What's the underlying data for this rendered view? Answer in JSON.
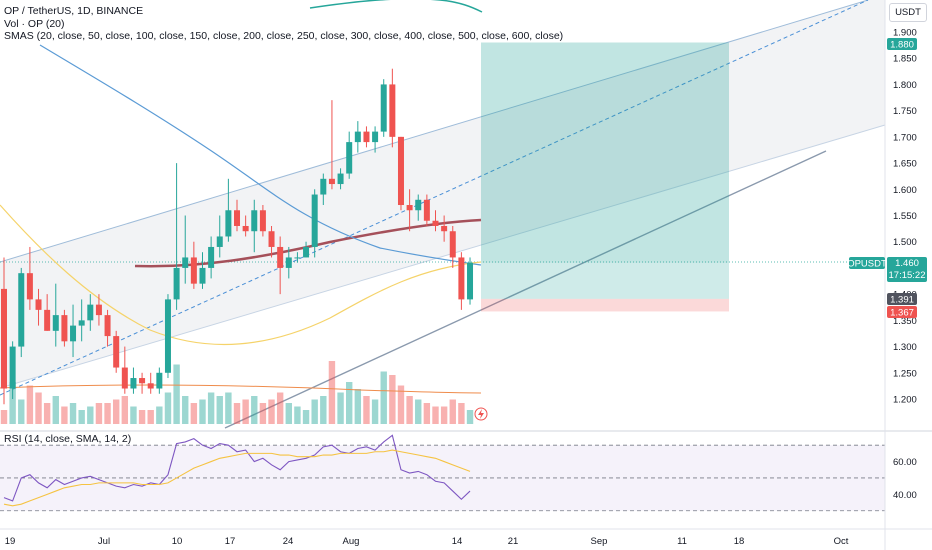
{
  "header": {
    "title": "OP / TetherUS, 1D, BINANCE",
    "vol": "Vol · OP (20)",
    "smas": "SMAS (20, close, 50, close, 100, close, 150, close, 200, close, 250, close, 300, close, 400, close, 500, close, 600, close)"
  },
  "currency": "USDT",
  "rsi_label": "RSI (14, close, SMA, 14, 2)",
  "price_axis": [
    "1.900",
    "1.850",
    "1.800",
    "1.750",
    "1.700",
    "1.650",
    "1.600",
    "1.550",
    "1.500",
    "1.450",
    "1.400",
    "1.350",
    "1.300",
    "1.250",
    "1.200"
  ],
  "rsi_axis": [
    "60.00",
    "40.00"
  ],
  "date_axis": [
    "19",
    "Jul",
    "10",
    "17",
    "24",
    "Aug",
    "14",
    "21",
    "Sep",
    "11",
    "18",
    "Oct"
  ],
  "badges": {
    "target": "1.880",
    "symbol": "OPUSDT",
    "last": "1.460",
    "countdown": "17:15:22",
    "entry": "1.391",
    "stop": "1.367"
  },
  "colors": {
    "up": "#26a69a",
    "down": "#ef5350",
    "target_zone": "#26a69a",
    "stop_zone": "#ef5350",
    "channel": "#e8e9ec",
    "rsi_band": "#7e57c2",
    "sma_maroon": "#a5505a",
    "sma_green": "#26a69a",
    "sma_blue": "#5b9bd5",
    "sma_yellow": "#f5d36a",
    "sma_orange": "#ef8c4c"
  },
  "chart_data": {
    "type": "candlestick",
    "title": "OP / TetherUS, 1D, BINANCE",
    "ylim": [
      1.17,
      1.93
    ],
    "candles": [
      {
        "o": 1.41,
        "h": 1.47,
        "l": 1.19,
        "c": 1.22
      },
      {
        "o": 1.22,
        "h": 1.31,
        "l": 1.2,
        "c": 1.3
      },
      {
        "o": 1.3,
        "h": 1.45,
        "l": 1.28,
        "c": 1.44
      },
      {
        "o": 1.44,
        "h": 1.49,
        "l": 1.37,
        "c": 1.39
      },
      {
        "o": 1.39,
        "h": 1.41,
        "l": 1.34,
        "c": 1.37
      },
      {
        "o": 1.37,
        "h": 1.4,
        "l": 1.33,
        "c": 1.33
      },
      {
        "o": 1.33,
        "h": 1.42,
        "l": 1.3,
        "c": 1.36
      },
      {
        "o": 1.36,
        "h": 1.37,
        "l": 1.3,
        "c": 1.31
      },
      {
        "o": 1.31,
        "h": 1.38,
        "l": 1.28,
        "c": 1.34
      },
      {
        "o": 1.34,
        "h": 1.39,
        "l": 1.31,
        "c": 1.35
      },
      {
        "o": 1.35,
        "h": 1.4,
        "l": 1.33,
        "c": 1.38
      },
      {
        "o": 1.38,
        "h": 1.4,
        "l": 1.34,
        "c": 1.36
      },
      {
        "o": 1.36,
        "h": 1.37,
        "l": 1.3,
        "c": 1.32
      },
      {
        "o": 1.32,
        "h": 1.33,
        "l": 1.25,
        "c": 1.26
      },
      {
        "o": 1.26,
        "h": 1.3,
        "l": 1.21,
        "c": 1.22
      },
      {
        "o": 1.22,
        "h": 1.26,
        "l": 1.21,
        "c": 1.24
      },
      {
        "o": 1.24,
        "h": 1.25,
        "l": 1.21,
        "c": 1.23
      },
      {
        "o": 1.23,
        "h": 1.25,
        "l": 1.21,
        "c": 1.22
      },
      {
        "o": 1.22,
        "h": 1.26,
        "l": 1.21,
        "c": 1.25
      },
      {
        "o": 1.25,
        "h": 1.4,
        "l": 1.24,
        "c": 1.39
      },
      {
        "o": 1.39,
        "h": 1.65,
        "l": 1.37,
        "c": 1.45
      },
      {
        "o": 1.45,
        "h": 1.55,
        "l": 1.42,
        "c": 1.47
      },
      {
        "o": 1.47,
        "h": 1.5,
        "l": 1.41,
        "c": 1.42
      },
      {
        "o": 1.42,
        "h": 1.48,
        "l": 1.41,
        "c": 1.45
      },
      {
        "o": 1.45,
        "h": 1.51,
        "l": 1.43,
        "c": 1.49
      },
      {
        "o": 1.49,
        "h": 1.55,
        "l": 1.47,
        "c": 1.51
      },
      {
        "o": 1.51,
        "h": 1.62,
        "l": 1.5,
        "c": 1.56
      },
      {
        "o": 1.56,
        "h": 1.58,
        "l": 1.52,
        "c": 1.53
      },
      {
        "o": 1.53,
        "h": 1.55,
        "l": 1.51,
        "c": 1.52
      },
      {
        "o": 1.52,
        "h": 1.58,
        "l": 1.48,
        "c": 1.56
      },
      {
        "o": 1.56,
        "h": 1.57,
        "l": 1.51,
        "c": 1.52
      },
      {
        "o": 1.52,
        "h": 1.53,
        "l": 1.47,
        "c": 1.49
      },
      {
        "o": 1.49,
        "h": 1.51,
        "l": 1.4,
        "c": 1.45
      },
      {
        "o": 1.45,
        "h": 1.49,
        "l": 1.43,
        "c": 1.47
      },
      {
        "o": 1.47,
        "h": 1.48,
        "l": 1.46,
        "c": 1.47
      },
      {
        "o": 1.47,
        "h": 1.5,
        "l": 1.47,
        "c": 1.49
      },
      {
        "o": 1.49,
        "h": 1.6,
        "l": 1.47,
        "c": 1.59
      },
      {
        "o": 1.59,
        "h": 1.63,
        "l": 1.57,
        "c": 1.62
      },
      {
        "o": 1.62,
        "h": 1.77,
        "l": 1.6,
        "c": 1.61
      },
      {
        "o": 1.61,
        "h": 1.64,
        "l": 1.6,
        "c": 1.63
      },
      {
        "o": 1.63,
        "h": 1.71,
        "l": 1.62,
        "c": 1.69
      },
      {
        "o": 1.69,
        "h": 1.73,
        "l": 1.67,
        "c": 1.71
      },
      {
        "o": 1.71,
        "h": 1.72,
        "l": 1.68,
        "c": 1.69
      },
      {
        "o": 1.69,
        "h": 1.72,
        "l": 1.67,
        "c": 1.71
      },
      {
        "o": 1.71,
        "h": 1.81,
        "l": 1.7,
        "c": 1.8
      },
      {
        "o": 1.8,
        "h": 1.83,
        "l": 1.68,
        "c": 1.7
      },
      {
        "o": 1.7,
        "h": 1.7,
        "l": 1.56,
        "c": 1.57
      },
      {
        "o": 1.57,
        "h": 1.6,
        "l": 1.52,
        "c": 1.56
      },
      {
        "o": 1.56,
        "h": 1.59,
        "l": 1.54,
        "c": 1.58
      },
      {
        "o": 1.58,
        "h": 1.59,
        "l": 1.53,
        "c": 1.54
      },
      {
        "o": 1.54,
        "h": 1.56,
        "l": 1.52,
        "c": 1.53
      },
      {
        "o": 1.53,
        "h": 1.55,
        "l": 1.5,
        "c": 1.52
      },
      {
        "o": 1.52,
        "h": 1.53,
        "l": 1.45,
        "c": 1.47
      },
      {
        "o": 1.47,
        "h": 1.48,
        "l": 1.37,
        "c": 1.39
      },
      {
        "o": 1.39,
        "h": 1.47,
        "l": 1.38,
        "c": 1.46
      }
    ],
    "volume_relative": [
      0.2,
      0.6,
      0.35,
      0.55,
      0.45,
      0.3,
      0.4,
      0.25,
      0.3,
      0.2,
      0.25,
      0.3,
      0.3,
      0.35,
      0.4,
      0.25,
      0.2,
      0.2,
      0.25,
      0.45,
      0.85,
      0.4,
      0.3,
      0.35,
      0.45,
      0.4,
      0.45,
      0.3,
      0.35,
      0.4,
      0.3,
      0.35,
      0.45,
      0.3,
      0.25,
      0.2,
      0.35,
      0.4,
      0.9,
      0.45,
      0.6,
      0.5,
      0.4,
      0.35,
      0.75,
      0.7,
      0.55,
      0.4,
      0.35,
      0.3,
      0.25,
      0.25,
      0.35,
      0.3,
      0.2
    ],
    "rsi": [
      38,
      36,
      50,
      52,
      47,
      44,
      49,
      46,
      48,
      50,
      51,
      49,
      47,
      45,
      44,
      46,
      45,
      47,
      46,
      52,
      71,
      72,
      74,
      70,
      68,
      71,
      70,
      66,
      67,
      60,
      62,
      58,
      55,
      60,
      61,
      62,
      64,
      69,
      70,
      66,
      65,
      68,
      69,
      67,
      72,
      76,
      55,
      53,
      54,
      52,
      48,
      47,
      42,
      37,
      42
    ],
    "rsi_sma": [
      34,
      33,
      34,
      36,
      38,
      40,
      42,
      44,
      45,
      46,
      46,
      47,
      47,
      47,
      47,
      47,
      46,
      46,
      46,
      47,
      50,
      53,
      56,
      58,
      60,
      62,
      63,
      64,
      65,
      65,
      65,
      65,
      64,
      64,
      63,
      63,
      63,
      64,
      64,
      65,
      65,
      65,
      65,
      66,
      66,
      67,
      66,
      65,
      64,
      63,
      62,
      60,
      58,
      56,
      54
    ],
    "rsi_levels": [
      70,
      50,
      30
    ],
    "position_tool": {
      "target": 1.88,
      "entry": 1.391,
      "stop": 1.367
    },
    "last_price": 1.46
  }
}
